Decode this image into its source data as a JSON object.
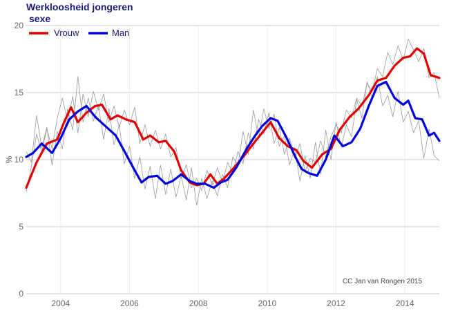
{
  "chart_data": {
    "type": "line",
    "title": "Werkloosheid jongeren",
    "subtitle": "sexe",
    "xlabel": "",
    "ylabel": "%",
    "annotation": "CC Jan van Rongen 2015",
    "xlim": [
      2003.0,
      2015.0
    ],
    "ylim": [
      0,
      20
    ],
    "xticks": [
      "2004",
      "2006",
      "2008",
      "2010",
      "2012",
      "2014"
    ],
    "yticks": [
      "0",
      "5",
      "10",
      "15",
      "20"
    ],
    "grid": true,
    "legend_position": "top-left",
    "series": [
      {
        "name": "Vrouw",
        "color": "#e00000",
        "x": [
          2003.0,
          2003.3,
          2003.6,
          2003.9,
          2004.1,
          2004.3,
          2004.5,
          2004.75,
          2005.0,
          2005.2,
          2005.45,
          2005.65,
          2005.9,
          2006.15,
          2006.4,
          2006.6,
          2006.85,
          2007.05,
          2007.3,
          2007.5,
          2007.75,
          2007.95,
          2008.15,
          2008.35,
          2008.55,
          2008.75,
          2009.0,
          2009.3,
          2009.6,
          2009.85,
          2010.1,
          2010.35,
          2010.6,
          2010.85,
          2011.05,
          2011.3,
          2011.6,
          2011.85,
          2012.1,
          2012.4,
          2012.65,
          2012.95,
          2013.2,
          2013.45,
          2013.7,
          2013.95,
          2014.15,
          2014.35,
          2014.55,
          2014.75,
          2015.0
        ],
        "values": [
          7.9,
          9.8,
          11.2,
          11.5,
          12.8,
          13.9,
          12.8,
          13.5,
          14.0,
          14.1,
          13.0,
          13.3,
          13.0,
          12.8,
          11.5,
          11.8,
          11.3,
          11.4,
          10.6,
          9.2,
          8.3,
          8.1,
          8.2,
          8.9,
          8.2,
          8.6,
          9.3,
          10.2,
          11.2,
          12.0,
          12.8,
          11.6,
          11.0,
          10.7,
          9.9,
          9.4,
          10.4,
          10.8,
          12.2,
          13.2,
          13.8,
          14.8,
          15.9,
          16.1,
          17.0,
          17.6,
          17.7,
          18.3,
          17.9,
          16.3,
          16.1
        ]
      },
      {
        "name": "Man",
        "color": "#0000dd",
        "x": [
          2003.0,
          2003.2,
          2003.45,
          2003.75,
          2004.0,
          2004.25,
          2004.5,
          2004.75,
          2005.0,
          2005.3,
          2005.6,
          2005.9,
          2006.15,
          2006.35,
          2006.55,
          2006.8,
          2007.05,
          2007.25,
          2007.5,
          2007.75,
          2007.95,
          2008.2,
          2008.45,
          2008.65,
          2008.85,
          2009.1,
          2009.4,
          2009.65,
          2009.85,
          2010.1,
          2010.3,
          2010.55,
          2010.8,
          2011.0,
          2011.2,
          2011.45,
          2011.7,
          2011.95,
          2012.2,
          2012.45,
          2012.7,
          2012.95,
          2013.2,
          2013.45,
          2013.7,
          2013.95,
          2014.1,
          2014.3,
          2014.5,
          2014.7,
          2014.85,
          2015.0
        ],
        "values": [
          10.2,
          10.5,
          11.2,
          10.5,
          11.6,
          13.0,
          13.6,
          14.0,
          13.2,
          12.5,
          11.8,
          10.4,
          9.2,
          8.3,
          8.7,
          8.8,
          8.2,
          8.4,
          8.9,
          8.4,
          8.2,
          8.2,
          7.9,
          8.3,
          8.5,
          9.4,
          10.8,
          11.8,
          12.5,
          13.1,
          12.9,
          11.7,
          10.3,
          9.3,
          9.0,
          8.8,
          10.0,
          11.8,
          11.0,
          11.3,
          12.3,
          14.0,
          15.5,
          15.8,
          14.6,
          14.1,
          14.4,
          13.1,
          13.0,
          11.8,
          12.0,
          11.4
        ]
      }
    ],
    "background_series": [
      {
        "color": "#999999",
        "x": [
          2003.0,
          2003.15,
          2003.3,
          2003.45,
          2003.6,
          2003.75,
          2003.9,
          2004.05,
          2004.2,
          2004.35,
          2004.5,
          2004.65,
          2004.8,
          2004.95,
          2005.1,
          2005.25,
          2005.4,
          2005.55,
          2005.7,
          2005.85,
          2006.0,
          2006.15,
          2006.3,
          2006.45,
          2006.6,
          2006.75,
          2006.9,
          2007.05,
          2007.2,
          2007.35,
          2007.5,
          2007.65,
          2007.8,
          2007.95,
          2008.1,
          2008.25,
          2008.4,
          2008.55,
          2008.7,
          2008.85,
          2009.0,
          2009.15,
          2009.3,
          2009.45,
          2009.6,
          2009.75,
          2009.9,
          2010.05,
          2010.2,
          2010.35,
          2010.5,
          2010.65,
          2010.8,
          2010.95,
          2011.1,
          2011.25,
          2011.4,
          2011.55,
          2011.7,
          2011.85,
          2012.0,
          2012.15,
          2012.3,
          2012.45,
          2012.6,
          2012.75,
          2012.9,
          2013.05,
          2013.2,
          2013.35,
          2013.5,
          2013.65,
          2013.8,
          2013.95,
          2014.1,
          2014.25,
          2014.4,
          2014.55,
          2014.7,
          2014.85,
          2015.0
        ],
        "values": [
          7.6,
          9.5,
          11.9,
          10.6,
          12.3,
          10.8,
          13.1,
          14.6,
          12.9,
          14.7,
          12.0,
          14.9,
          13.2,
          15.1,
          13.7,
          14.9,
          12.8,
          14.0,
          12.4,
          13.7,
          12.6,
          13.9,
          11.2,
          12.6,
          11.0,
          12.2,
          10.8,
          11.9,
          10.2,
          10.9,
          8.6,
          9.6,
          7.9,
          8.6,
          7.7,
          9.2,
          8.1,
          9.4,
          8.3,
          9.8,
          9.0,
          10.6,
          9.7,
          12.0,
          10.8,
          13.0,
          11.9,
          13.5,
          11.2,
          12.4,
          10.4,
          11.6,
          10.1,
          11.2,
          9.1,
          10.1,
          9.8,
          11.4,
          10.2,
          11.7,
          12.6,
          12.0,
          13.7,
          13.1,
          14.6,
          14.0,
          15.7,
          15.1,
          16.8,
          16.2,
          18.0,
          17.1,
          18.5,
          17.4,
          19.0,
          18.2,
          17.3,
          18.3,
          16.1,
          16.5,
          14.6
        ]
      },
      {
        "color": "#999999",
        "x": [
          2003.0,
          2003.15,
          2003.3,
          2003.45,
          2003.6,
          2003.75,
          2003.9,
          2004.05,
          2004.2,
          2004.35,
          2004.5,
          2004.65,
          2004.8,
          2004.95,
          2005.1,
          2005.25,
          2005.4,
          2005.55,
          2005.7,
          2005.85,
          2006.0,
          2006.15,
          2006.3,
          2006.45,
          2006.6,
          2006.75,
          2006.9,
          2007.05,
          2007.2,
          2007.35,
          2007.5,
          2007.65,
          2007.8,
          2007.95,
          2008.1,
          2008.25,
          2008.4,
          2008.55,
          2008.7,
          2008.85,
          2009.0,
          2009.15,
          2009.3,
          2009.45,
          2009.6,
          2009.75,
          2009.9,
          2010.05,
          2010.2,
          2010.35,
          2010.5,
          2010.65,
          2010.8,
          2010.95,
          2011.1,
          2011.25,
          2011.4,
          2011.55,
          2011.7,
          2011.85,
          2012.0,
          2012.15,
          2012.3,
          2012.45,
          2012.6,
          2012.75,
          2012.9,
          2013.05,
          2013.2,
          2013.35,
          2013.5,
          2013.65,
          2013.8,
          2013.95,
          2014.1,
          2014.25,
          2014.4,
          2014.55,
          2014.7,
          2014.85,
          2015.0
        ],
        "values": [
          10.6,
          9.8,
          13.3,
          10.9,
          12.4,
          9.6,
          12.1,
          10.8,
          13.8,
          12.2,
          16.2,
          12.8,
          14.6,
          12.9,
          14.0,
          11.5,
          13.8,
          11.1,
          12.6,
          9.7,
          11.0,
          8.6,
          10.2,
          7.8,
          9.5,
          7.1,
          9.6,
          7.4,
          9.3,
          7.2,
          8.8,
          7.0,
          9.4,
          6.6,
          8.6,
          7.1,
          8.4,
          7.3,
          8.9,
          7.9,
          10.2,
          9.6,
          12.1,
          10.4,
          13.7,
          11.6,
          13.8,
          12.3,
          13.4,
          11.0,
          11.8,
          9.6,
          10.9,
          8.4,
          10.3,
          8.6,
          11.3,
          8.9,
          12.2,
          10.0,
          12.8,
          10.9,
          12.6,
          11.7,
          14.5,
          13.1,
          15.8,
          14.6,
          16.2,
          14.0,
          14.8,
          13.2,
          15.1,
          12.8,
          13.6,
          12.0,
          12.9,
          10.1,
          12.3,
          10.3,
          9.9
        ]
      }
    ]
  }
}
